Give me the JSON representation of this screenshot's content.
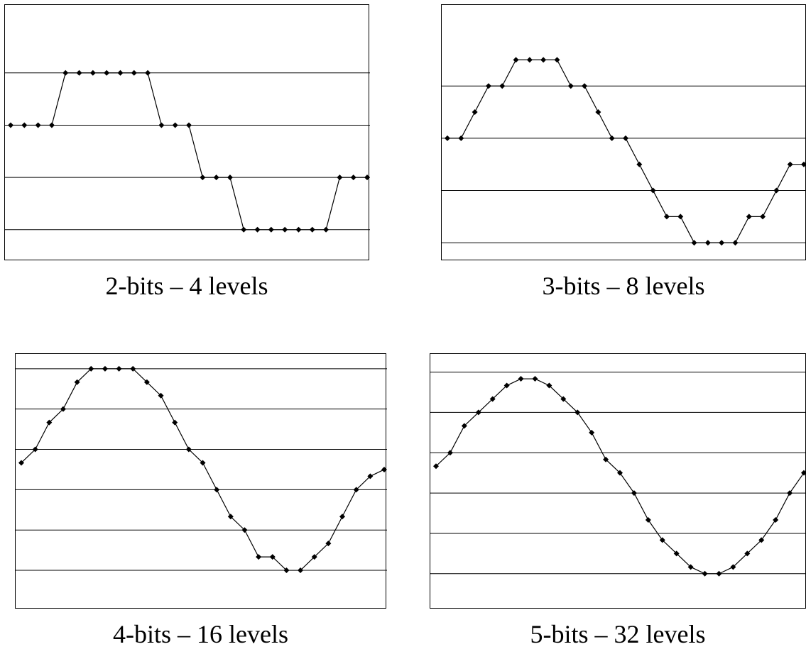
{
  "chart_data": [
    {
      "type": "line",
      "title": "2-bits – 4 levels",
      "x": [
        0,
        1,
        2,
        3,
        4,
        5,
        6,
        7,
        8,
        9,
        10,
        11,
        12,
        13,
        14,
        15,
        16,
        17,
        18,
        19,
        20,
        21,
        22,
        23,
        24,
        25,
        26
      ],
      "values": [
        1,
        1,
        1,
        1,
        3,
        3,
        3,
        3,
        3,
        3,
        3,
        1,
        1,
        1,
        -1,
        -1,
        -1,
        -3,
        -3,
        -3,
        -3,
        -3,
        -3,
        -3,
        -1,
        -1,
        -1
      ],
      "ylim": [
        -4.2,
        5.6
      ],
      "gridlines": [
        -3,
        -1,
        1,
        3
      ],
      "grid": true
    },
    {
      "type": "line",
      "title": "3-bits – 8 levels",
      "x": [
        0,
        1,
        2,
        3,
        4,
        5,
        6,
        7,
        8,
        9,
        10,
        11,
        12,
        13,
        14,
        15,
        16,
        17,
        18,
        19,
        20,
        21,
        22,
        23,
        24,
        25,
        26
      ],
      "values": [
        0.5,
        0.5,
        1.5,
        2.5,
        2.5,
        3.5,
        3.5,
        3.5,
        3.5,
        2.5,
        2.5,
        1.5,
        0.5,
        0.5,
        -0.5,
        -1.5,
        -2.5,
        -2.5,
        -3.5,
        -3.5,
        -3.5,
        -3.5,
        -2.5,
        -2.5,
        -1.5,
        -0.5,
        -0.5
      ],
      "ylim": [
        -4.2,
        5.6
      ],
      "gridlines": [
        -3.5,
        -1.5,
        0.5,
        2.5
      ],
      "grid": true
    },
    {
      "type": "line",
      "title": "4-bits – 16 levels",
      "x": [
        0,
        1,
        2,
        3,
        4,
        5,
        6,
        7,
        8,
        9,
        10,
        11,
        12,
        13,
        14,
        15,
        16,
        17,
        18,
        19,
        20,
        21,
        22,
        23,
        24,
        25,
        26
      ],
      "values": [
        0.25,
        0.75,
        1.75,
        2.25,
        3.25,
        3.75,
        3.75,
        3.75,
        3.75,
        3.25,
        2.75,
        1.75,
        0.75,
        0.25,
        -0.75,
        -1.75,
        -2.25,
        -3.25,
        -3.25,
        -3.75,
        -3.75,
        -3.25,
        -2.75,
        -1.75,
        -0.75,
        -0.25,
        0
      ],
      "ylim": [
        -5.2,
        4.3
      ],
      "gridlines": [
        -3.75,
        -2.25,
        -0.75,
        0.75,
        2.25,
        3.75
      ],
      "grid": true
    },
    {
      "type": "line",
      "title": "5-bits – 32 levels",
      "x": [
        0,
        1,
        2,
        3,
        4,
        5,
        6,
        7,
        8,
        9,
        10,
        11,
        12,
        13,
        14,
        15,
        16,
        17,
        18,
        19,
        20,
        21,
        22,
        23,
        24,
        25,
        26
      ],
      "values": [
        0.125,
        0.625,
        1.625,
        2.125,
        2.625,
        3.125,
        3.375,
        3.375,
        3.125,
        2.625,
        2.125,
        1.375,
        0.375,
        -0.125,
        -0.875,
        -1.875,
        -2.625,
        -3.125,
        -3.625,
        -3.875,
        -3.875,
        -3.625,
        -3.125,
        -2.625,
        -1.875,
        -0.875,
        -0.125
      ],
      "ylim": [
        -5.2,
        4.3
      ],
      "gridlines": [
        -3.875,
        -2.375,
        -0.875,
        0.625,
        2.125,
        3.625
      ],
      "grid": true
    }
  ]
}
